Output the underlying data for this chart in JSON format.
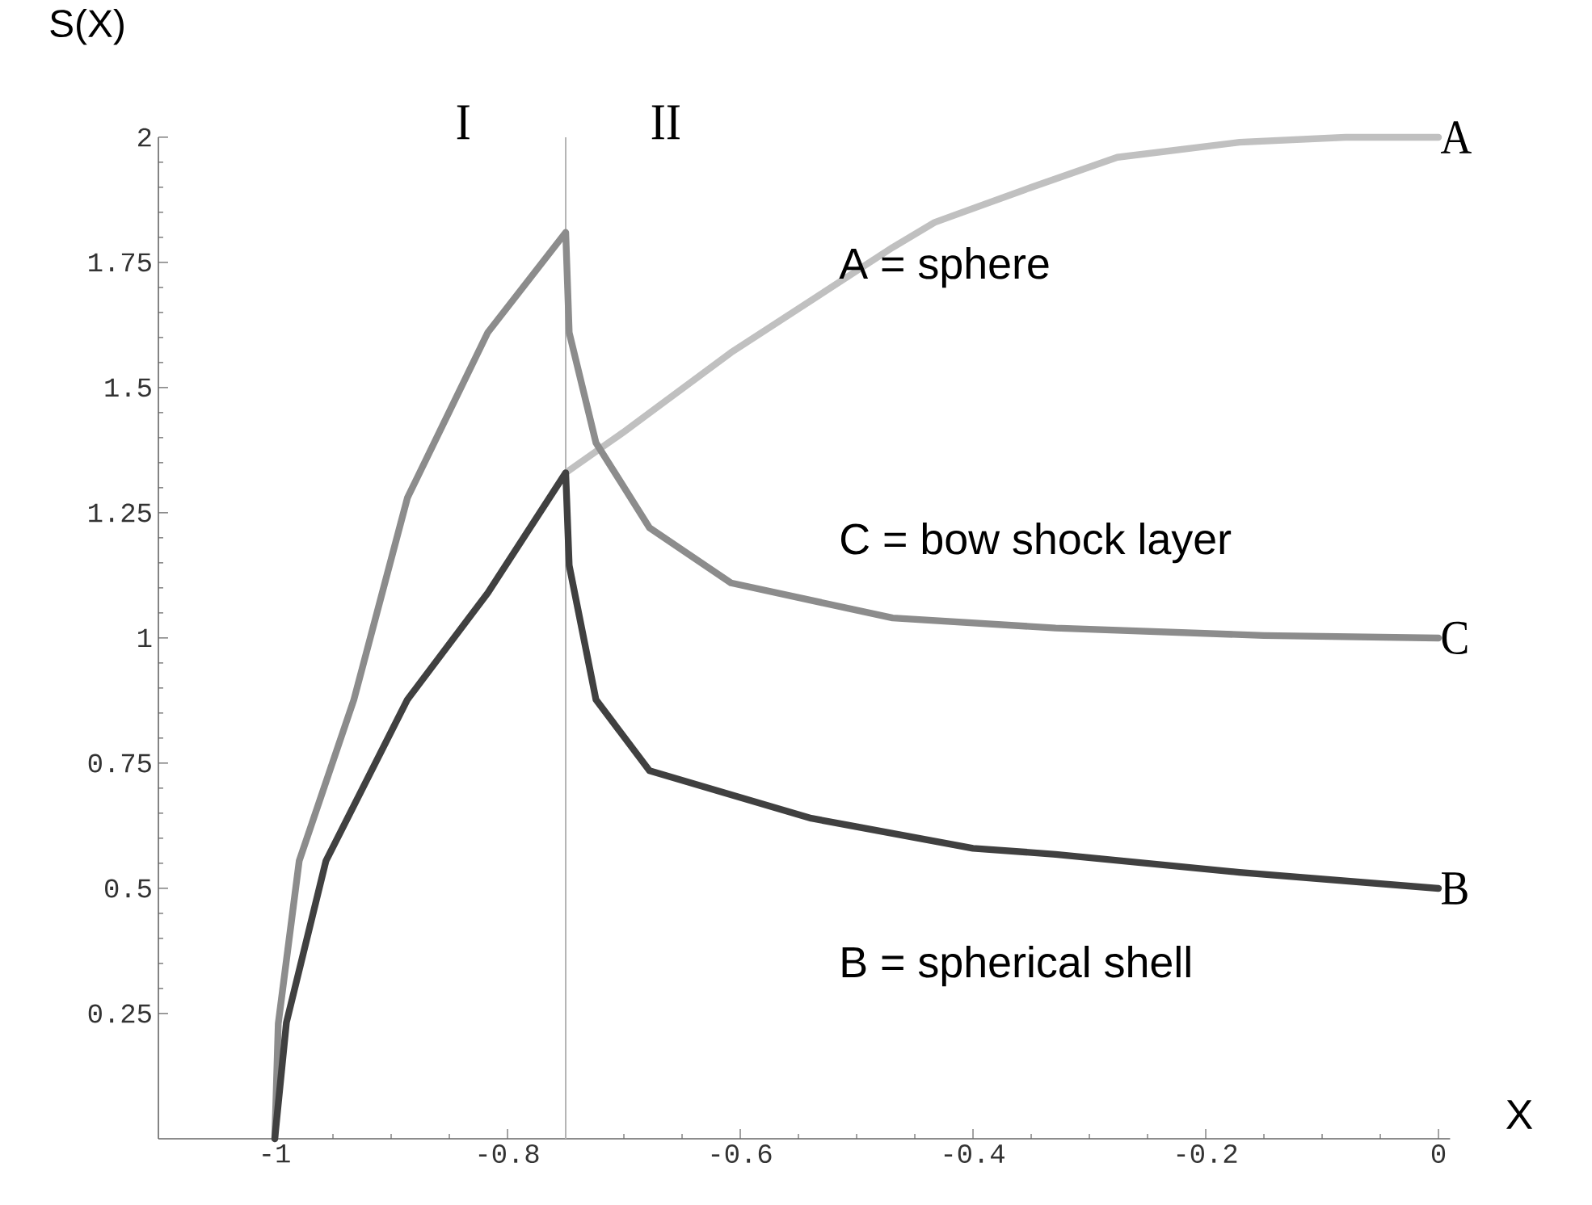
{
  "chart_data": {
    "type": "line",
    "xlabel": "X",
    "ylabel": "S(X)",
    "xlim": [
      -1.1,
      0.01
    ],
    "ylim": [
      0,
      2
    ],
    "xticks": [
      -1,
      -0.8,
      -0.6,
      -0.4,
      -0.2,
      0
    ],
    "yticks": [
      0.25,
      0.5,
      0.75,
      1,
      1.25,
      1.5,
      1.75,
      2
    ],
    "marker": "none",
    "line_style": "solid",
    "series": [
      {
        "name": "A",
        "color": "#c0c0c0",
        "x": [
          -0.75,
          -0.701,
          -0.608,
          -0.469,
          -0.433,
          -0.35,
          -0.276,
          -0.171,
          -0.08,
          0
        ],
        "values": [
          1.33,
          1.41,
          1.57,
          1.78,
          1.83,
          1.9,
          1.96,
          1.99,
          2,
          2
        ]
      },
      {
        "name": "C",
        "color": "#8c8c8c",
        "x": [
          -1,
          -0.997,
          -0.979,
          -0.932,
          -0.886,
          -0.817,
          -0.75,
          -0.747,
          -0.724,
          -0.678,
          -0.608,
          -0.469,
          -0.329,
          -0.15,
          0
        ],
        "values": [
          0,
          0.23,
          0.555,
          0.877,
          1.28,
          1.61,
          1.81,
          1.61,
          1.39,
          1.22,
          1.11,
          1.04,
          1.02,
          1.005,
          1
        ]
      },
      {
        "name": "B",
        "color": "#404040",
        "x": [
          -1,
          -0.99,
          -0.956,
          -0.886,
          -0.817,
          -0.75,
          -0.747,
          -0.724,
          -0.678,
          -0.608,
          -0.539,
          -0.4,
          -0.329,
          -0.171,
          0
        ],
        "values": [
          0,
          0.232,
          0.555,
          0.877,
          1.09,
          1.33,
          1.145,
          0.877,
          0.735,
          0.687,
          0.64,
          0.58,
          0.568,
          0.532,
          0.5
        ]
      }
    ],
    "ref_lines": [
      {
        "axis": "x",
        "value": -0.75,
        "color": "#b4b4b4"
      }
    ],
    "annotations": [
      "I",
      "II",
      "A = sphere",
      "C = bow shock layer",
      "B = spherical shell"
    ]
  }
}
